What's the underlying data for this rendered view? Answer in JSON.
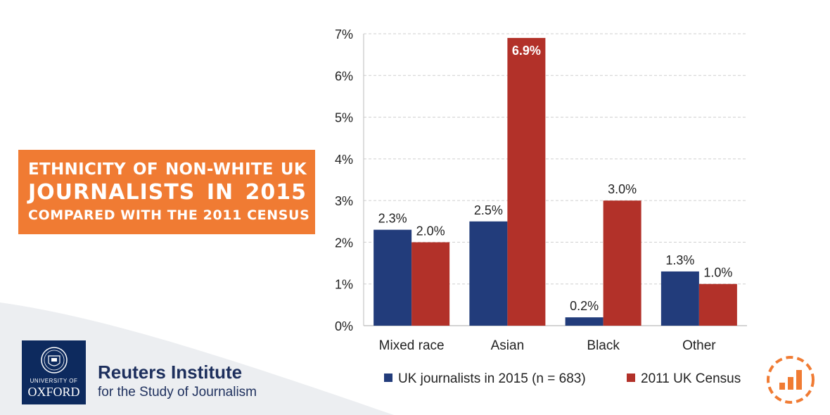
{
  "title": {
    "line1": "Ethnicity of non-white UK",
    "line2": "journalists in 2015",
    "line3": "compared with the 2011 census"
  },
  "branding": {
    "university_line1": "UNIVERSITY OF",
    "university_line2": "OXFORD",
    "institute_name": "Reuters Institute",
    "institute_sub": "for the Study of Journalism"
  },
  "colors": {
    "accent": "#f07b33",
    "series_journalists": "#223c7b",
    "series_census": "#b23129",
    "oxford_blue": "#0d2a5e"
  },
  "icons": [
    "bar-chart-badge-icon",
    "oxford-crest-icon"
  ],
  "chart_data": {
    "type": "bar",
    "title": "Ethnicity of non-white UK journalists in 2015 compared with the 2011 census",
    "categories": [
      "Mixed race",
      "Asian",
      "Black",
      "Other"
    ],
    "series": [
      {
        "name": "UK journalists in 2015 (n = 683)",
        "values": [
          2.3,
          2.5,
          0.2,
          1.3
        ],
        "labels": [
          "2.3%",
          "2.5%",
          "0.2%",
          "1.3%"
        ]
      },
      {
        "name": "2011 UK Census",
        "values": [
          2.0,
          6.9,
          3.0,
          1.0
        ],
        "labels": [
          "2.0%",
          "6.9%",
          "3.0%",
          "1.0%"
        ]
      }
    ],
    "yticks": [
      "0%",
      "1%",
      "2%",
      "3%",
      "4%",
      "5%",
      "6%",
      "7%"
    ],
    "ylim": [
      0,
      7
    ],
    "grid": true,
    "legend_position": "bottom"
  }
}
